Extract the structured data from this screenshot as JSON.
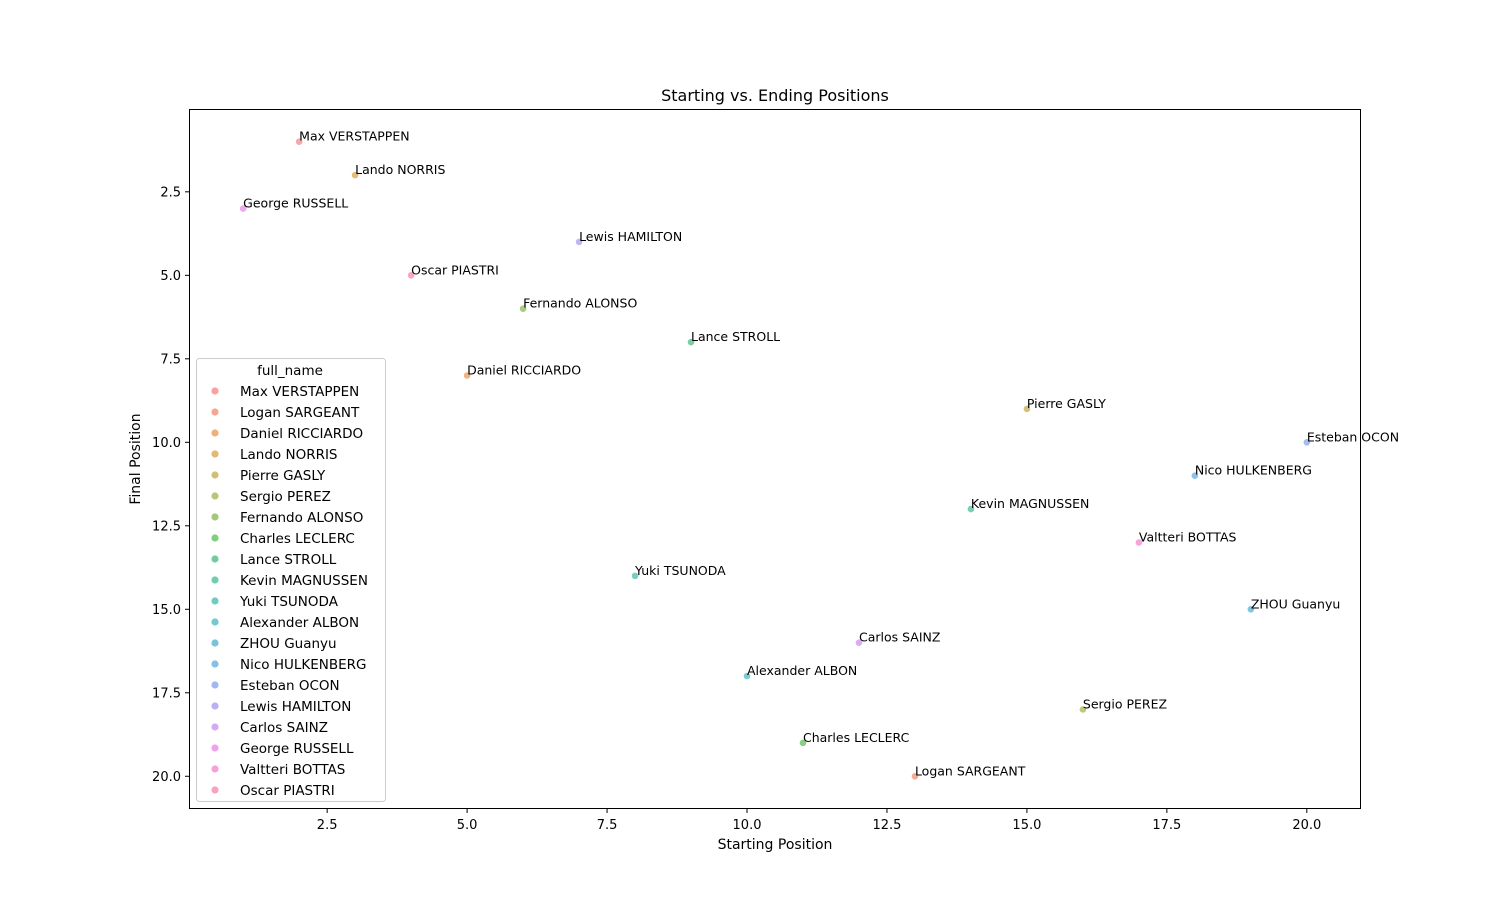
{
  "chart_data": {
    "type": "scatter",
    "title": "Starting vs. Ending Positions",
    "xlabel": "Starting Position",
    "ylabel": "Final Position",
    "xlim": [
      0.05,
      20.95
    ],
    "ylim": [
      20.95,
      0.05
    ],
    "y_inverted": true,
    "xticks": [
      "2.5",
      "5.0",
      "7.5",
      "10.0",
      "12.5",
      "15.0",
      "17.5",
      "20.0"
    ],
    "yticks": [
      "2.5",
      "5.0",
      "7.5",
      "10.0",
      "12.5",
      "15.0",
      "17.5",
      "20.0"
    ],
    "grid": false,
    "legend_title": "full_name",
    "legend_position": "lower-left",
    "points": [
      {
        "name": "Max VERSTAPPEN",
        "x": 2,
        "y": 1,
        "color": "#f8a2a2"
      },
      {
        "name": "Logan SARGEANT",
        "x": 13,
        "y": 20,
        "color": "#f6a78f"
      },
      {
        "name": "Daniel RICCIARDO",
        "x": 5,
        "y": 8,
        "color": "#efb07a"
      },
      {
        "name": "Lando NORRIS",
        "x": 3,
        "y": 2,
        "color": "#e4b872"
      },
      {
        "name": "Pierre GASLY",
        "x": 15,
        "y": 9,
        "color": "#d2be76"
      },
      {
        "name": "Sergio PEREZ",
        "x": 16,
        "y": 18,
        "color": "#bcc479"
      },
      {
        "name": "Fernando ALONSO",
        "x": 6,
        "y": 6,
        "color": "#a3c878"
      },
      {
        "name": "Charles LECLERC",
        "x": 11,
        "y": 19,
        "color": "#7fcf7e"
      },
      {
        "name": "Lance STROLL",
        "x": 9,
        "y": 7,
        "color": "#71cc9f"
      },
      {
        "name": "Kevin MAGNUSSEN",
        "x": 14,
        "y": 12,
        "color": "#71ccb0"
      },
      {
        "name": "Yuki TSUNODA",
        "x": 8,
        "y": 14,
        "color": "#72cbc0"
      },
      {
        "name": "Alexander ALBON",
        "x": 10,
        "y": 17,
        "color": "#74c8d0"
      },
      {
        "name": "ZHOU Guanyu",
        "x": 19,
        "y": 15,
        "color": "#79c3dc"
      },
      {
        "name": "Nico HULKENBERG",
        "x": 18,
        "y": 11,
        "color": "#87bfe9"
      },
      {
        "name": "Esteban OCON",
        "x": 20,
        "y": 10,
        "color": "#a1b7f1"
      },
      {
        "name": "Lewis HAMILTON",
        "x": 7,
        "y": 4,
        "color": "#bbb0f5"
      },
      {
        "name": "Carlos SAINZ",
        "x": 12,
        "y": 16,
        "color": "#d6a9f4"
      },
      {
        "name": "George RUSSELL",
        "x": 1,
        "y": 3,
        "color": "#eea3ee"
      },
      {
        "name": "Valtteri BOTTAS",
        "x": 17,
        "y": 13,
        "color": "#f6a1d8"
      },
      {
        "name": "Oscar PIASTRI",
        "x": 4,
        "y": 5,
        "color": "#f8a2bf"
      }
    ]
  }
}
